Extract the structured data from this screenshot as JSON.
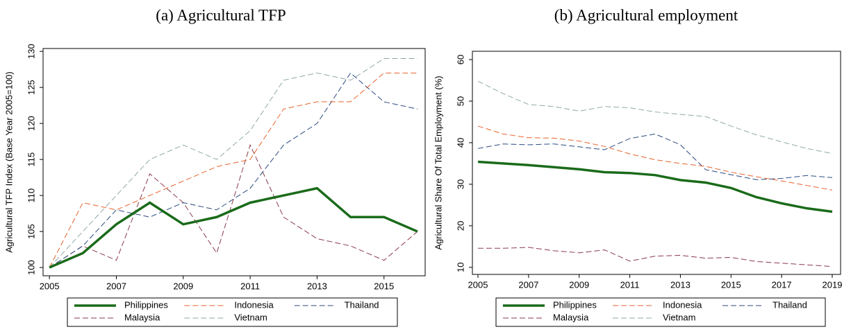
{
  "chart_data": [
    {
      "type": "line",
      "title": "(a) Agricultural TFP",
      "y_label": "Agricultural TFP Index (Base Year 2005=100)",
      "x": [
        2005,
        2006,
        2007,
        2008,
        2009,
        2010,
        2011,
        2012,
        2013,
        2014,
        2015,
        2016
      ],
      "xlim": [
        2004.81,
        2016.23
      ],
      "xticks": [
        2005,
        2007,
        2009,
        2011,
        2013,
        2015
      ],
      "ylim": [
        98.85,
        130.4
      ],
      "yticks": [
        100,
        105,
        110,
        115,
        120,
        125,
        130
      ],
      "series": [
        {
          "name": "Philippines",
          "color": "#1a6b1a",
          "style": "solid",
          "values": [
            100,
            102,
            106,
            109,
            106,
            107,
            109,
            110,
            111,
            107,
            107,
            105
          ]
        },
        {
          "name": "Indonesia",
          "color": "#e8622c",
          "style": "dashed",
          "values": [
            100,
            109,
            108,
            110,
            112,
            114,
            115,
            122,
            123,
            123,
            127,
            127
          ]
        },
        {
          "name": "Thailand",
          "color": "#2a4a80",
          "style": "dashed",
          "values": [
            100,
            103,
            108,
            107,
            109,
            108,
            111,
            117,
            120,
            127,
            123,
            122
          ]
        },
        {
          "name": "Malaysia",
          "color": "#8b3a4a",
          "style": "dashed",
          "values": [
            100,
            103,
            101,
            113,
            109,
            102,
            117,
            107,
            104,
            103,
            101,
            105
          ]
        },
        {
          "name": "Vietnam",
          "color": "#90a8a8",
          "style": "dashed",
          "values": [
            100,
            105,
            110,
            115,
            117,
            115,
            119,
            126,
            127,
            126,
            129,
            129
          ]
        }
      ]
    },
    {
      "type": "line",
      "title": "(b) Agricultural employment",
      "y_label": "Agricultural Share Of Total Employment (%)",
      "x": [
        2005,
        2006,
        2007,
        2008,
        2009,
        2010,
        2011,
        2012,
        2013,
        2014,
        2015,
        2016,
        2017,
        2018,
        2019
      ],
      "xlim": [
        2004.78,
        2019.33
      ],
      "xticks": [
        2005,
        2007,
        2009,
        2011,
        2013,
        2015,
        2017,
        2019
      ],
      "ylim": [
        8.3,
        62
      ],
      "yticks": [
        10,
        20,
        30,
        40,
        50,
        60
      ],
      "series": [
        {
          "name": "Philippines",
          "color": "#1a6b1a",
          "style": "solid",
          "values": [
            35.4,
            35.0,
            34.6,
            34.1,
            33.6,
            32.9,
            32.7,
            32.2,
            31.0,
            30.4,
            29.1,
            26.9,
            25.4,
            24.2,
            23.4
          ]
        },
        {
          "name": "Indonesia",
          "color": "#e8622c",
          "style": "dashed",
          "values": [
            44.0,
            42.1,
            41.2,
            41.1,
            40.4,
            39.1,
            37.3,
            35.9,
            35.0,
            34.3,
            32.9,
            31.8,
            30.8,
            29.7,
            28.6
          ]
        },
        {
          "name": "Thailand",
          "color": "#2a4a80",
          "style": "dashed",
          "values": [
            38.6,
            39.7,
            39.5,
            39.7,
            39.0,
            38.3,
            41.0,
            42.1,
            39.5,
            33.5,
            32.3,
            31.1,
            31.4,
            32.1,
            31.6
          ]
        },
        {
          "name": "Malaysia",
          "color": "#8b3a4a",
          "style": "dashed",
          "values": [
            14.6,
            14.6,
            14.8,
            14.0,
            13.5,
            14.2,
            11.5,
            12.7,
            12.9,
            12.2,
            12.4,
            11.4,
            11.0,
            10.6,
            10.2
          ]
        },
        {
          "name": "Vietnam",
          "color": "#90a8a8",
          "style": "dashed",
          "values": [
            54.8,
            51.8,
            49.2,
            48.7,
            47.6,
            48.7,
            48.4,
            47.4,
            46.8,
            46.3,
            44.0,
            41.9,
            40.2,
            38.6,
            37.4
          ]
        }
      ]
    }
  ]
}
